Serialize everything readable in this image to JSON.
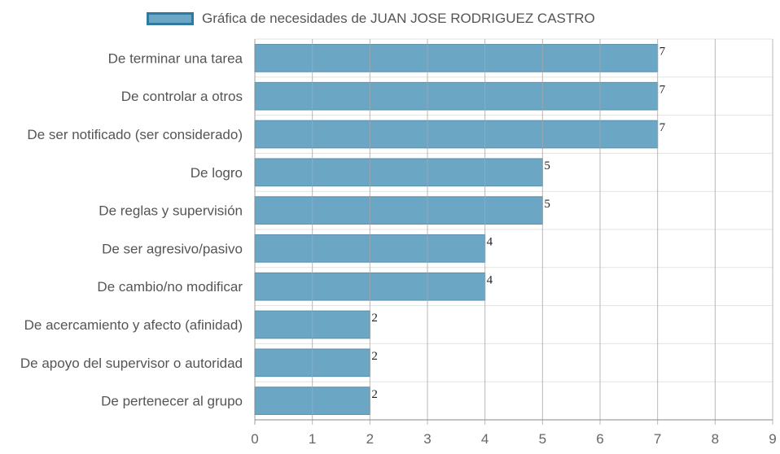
{
  "chart_data": {
    "type": "bar",
    "orientation": "horizontal",
    "legend": "top",
    "grid": true,
    "bar_color": "#6ba7c5",
    "bar_border_color": "#2f7aa0",
    "categories": [
      "De terminar una tarea",
      "De controlar a otros",
      "De ser notificado (ser considerado)",
      "De logro",
      "De reglas y supervisión",
      "De ser agresivo/pasivo",
      "De cambio/no modificar",
      "De acercamiento y afecto (afinidad)",
      "De apoyo del supervisor o autoridad",
      "De pertenecer al grupo"
    ],
    "series": [
      {
        "name": "Gráfica de necesidades de JUAN JOSE RODRIGUEZ CASTRO",
        "values": [
          7,
          7,
          7,
          5,
          5,
          4,
          4,
          2,
          2,
          2
        ]
      }
    ],
    "data_labels": [
      "7",
      "7",
      "7",
      "5",
      "5",
      "4",
      "4",
      "2",
      "2",
      "2"
    ],
    "xlim": [
      0,
      9
    ],
    "x_ticks": [
      "0",
      "1",
      "2",
      "3",
      "4",
      "5",
      "6",
      "7",
      "8",
      "9"
    ]
  }
}
